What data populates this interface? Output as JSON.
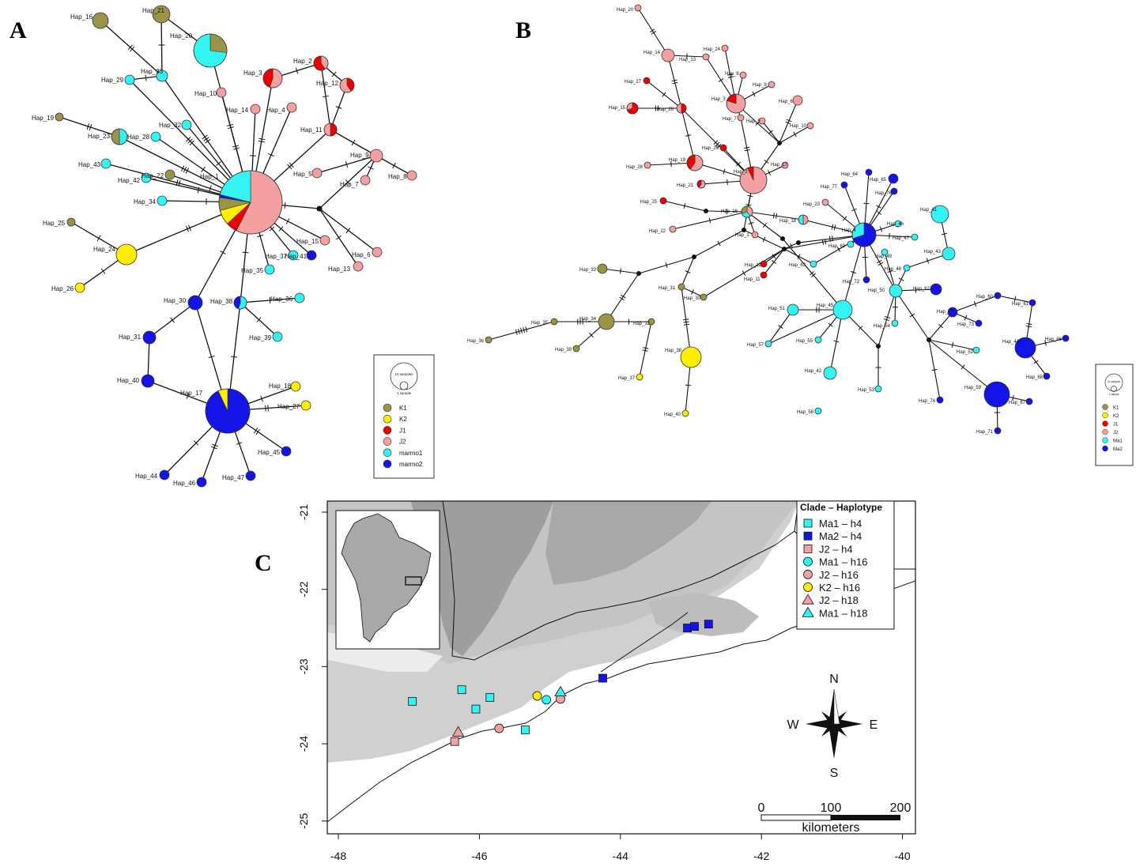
{
  "panels": {
    "a": "A",
    "b": "B",
    "c": "C"
  },
  "colors": {
    "K1": "#9b9447",
    "K2": "#ffee00",
    "J1": "#ee0000",
    "J2": "#f4a0a0",
    "marmo1": "#33f3f3",
    "marmo2": "#1414e6",
    "node": "#111111",
    "edge": "#111111"
  },
  "netA": {
    "nodes": [
      {
        "id": "Hap_1",
        "label": "Hap_1"
      },
      {
        "id": "Hap_2",
        "label": "Hap_2"
      },
      {
        "id": "Hap_3",
        "label": "Hap_3"
      },
      {
        "id": "Hap_4",
        "label": "Hap_4"
      },
      {
        "id": "Hap_5",
        "label": "Hap_5"
      },
      {
        "id": "Hap_6",
        "label": "Hap_6"
      },
      {
        "id": "Hap_7",
        "label": "Hap_7"
      },
      {
        "id": "Hap_8",
        "label": "Hap_8"
      },
      {
        "id": "Hap_9",
        "label": "Hap_9"
      },
      {
        "id": "Hap_10",
        "label": "Hap_10"
      },
      {
        "id": "Hap_11",
        "label": "Hap_11"
      },
      {
        "id": "Hap_12",
        "label": "Hap_12"
      },
      {
        "id": "Hap_13",
        "label": "Hap_13"
      },
      {
        "id": "Hap_14",
        "label": "Hap_14"
      },
      {
        "id": "Hap_15",
        "label": "Hap_15"
      },
      {
        "id": "Hap_16",
        "label": "Hap_16"
      },
      {
        "id": "Hap_17",
        "label": "Hap_17"
      },
      {
        "id": "Hap_18",
        "label": "Hap_18"
      },
      {
        "id": "Hap_19",
        "label": "Hap_19"
      },
      {
        "id": "Hap_20",
        "label": "Hap_20"
      },
      {
        "id": "Hap_21",
        "label": "Hap_21"
      },
      {
        "id": "Hap_22",
        "label": "Hap_22"
      },
      {
        "id": "Hap_23",
        "label": "Hap_23"
      },
      {
        "id": "Hap_24",
        "label": "Hap_24"
      },
      {
        "id": "Hap_25",
        "label": "Hap_25"
      },
      {
        "id": "Hap_26",
        "label": "Hap_26"
      },
      {
        "id": "Hap_27",
        "label": "Hap_27"
      },
      {
        "id": "Hap_28",
        "label": "Hap_28"
      },
      {
        "id": "Hap_29",
        "label": "Hap_29"
      },
      {
        "id": "Hap_30",
        "label": "Hap_30"
      },
      {
        "id": "Hap_31",
        "label": "Hap_31"
      },
      {
        "id": "Hap_32",
        "label": "Hap_32"
      },
      {
        "id": "Hap_33",
        "label": "Hap_33"
      },
      {
        "id": "Hap_34",
        "label": "Hap_34"
      },
      {
        "id": "Hap_35",
        "label": "Hap_35"
      },
      {
        "id": "Hap_36",
        "label": "Hap_36"
      },
      {
        "id": "Hap_37",
        "label": "Hap_37"
      },
      {
        "id": "Hap_38",
        "label": "Hap_38"
      },
      {
        "id": "Hap_39",
        "label": "Hap_39"
      },
      {
        "id": "Hap_40",
        "label": "Hap_40"
      },
      {
        "id": "Hap_41",
        "label": "Hap_41"
      },
      {
        "id": "Hap_42",
        "label": "Hap_42"
      },
      {
        "id": "Hap_43",
        "label": "Hap_43"
      },
      {
        "id": "Hap_44",
        "label": "Hap_44"
      },
      {
        "id": "Hap_45",
        "label": "Hap_45"
      },
      {
        "id": "Hap_46",
        "label": "Hap_46"
      },
      {
        "id": "Hap_47",
        "label": "Hap_47"
      }
    ],
    "legend": {
      "size_big": "10 samples",
      "size_small": "1 sample",
      "items": [
        {
          "name": "K1",
          "color": "#9b9447"
        },
        {
          "name": "K2",
          "color": "#ffee00"
        },
        {
          "name": "J1",
          "color": "#ee0000"
        },
        {
          "name": "J2",
          "color": "#f4a0a0"
        },
        {
          "name": "marmo1",
          "color": "#33f3f3"
        },
        {
          "name": "marmo2",
          "color": "#1414e6"
        }
      ]
    }
  },
  "netB": {
    "labels": [
      "Hap_20",
      "Hap_14",
      "Hap_13",
      "Hap_24",
      "Hap_27",
      "Hap_15",
      "Hap_26",
      "Hap_3",
      "Hap_8",
      "Hap_9",
      "Hap_6",
      "Hap_7",
      "Hap_5",
      "Hap_10",
      "Hap_29",
      "Hap_28",
      "Hap_19",
      "Hap_2",
      "Hap_21",
      "Hap_17",
      "Hap_25",
      "Hap_16",
      "Hap_22",
      "Hap_1",
      "Hap_18",
      "Hap_23",
      "Hap_64",
      "Hap_65",
      "Hap_77",
      "Hap_76",
      "Hap_4",
      "Hap_46",
      "Hap_41",
      "Hap_47",
      "Hap_43",
      "Hap_69",
      "Hap_12",
      "Hap_63",
      "Hap_11",
      "Hap_33",
      "Hap_31",
      "Hap_30",
      "Hap_48",
      "Hap_72",
      "Hap_50",
      "Hap_62",
      "Hap_49",
      "Hap_60",
      "Hap_61",
      "Hap_45",
      "Hap_51",
      "Hap_70",
      "Hap_73",
      "Hap_35",
      "Hap_34",
      "Hap_32",
      "Hap_54",
      "Hap_36",
      "Hap_39",
      "Hap_38",
      "Hap_57",
      "Hap_55",
      "Hap_52",
      "Hap_44",
      "Hap_66",
      "Hap_37",
      "Hap_42",
      "Hap_53",
      "Hap_74",
      "Hap_68",
      "Hap_59",
      "Hap_67",
      "Hap_58",
      "Hap_40",
      "Hap_71"
    ],
    "legend": {
      "size_big": "10 samples",
      "size_small": "1 sample",
      "items": [
        {
          "name": "K1",
          "color": "#9b9447"
        },
        {
          "name": "K2",
          "color": "#ffee00"
        },
        {
          "name": "J1",
          "color": "#ee0000"
        },
        {
          "name": "J2",
          "color": "#f4a0a0"
        },
        {
          "name": "Ma1",
          "color": "#33f3f3"
        },
        {
          "name": "Ma2",
          "color": "#1414e6"
        }
      ]
    }
  },
  "map": {
    "x_ticks": [
      "-48",
      "-46",
      "-44",
      "-42",
      "-40"
    ],
    "y_ticks": [
      "-21",
      "-22",
      "-23",
      "-24",
      "-25"
    ],
    "legend_title": "Clade – Haplotype",
    "legend_items": [
      {
        "label": "Ma1 – h4",
        "shape": "square",
        "color": "#33f3f3"
      },
      {
        "label": "Ma2 – h4",
        "shape": "square",
        "color": "#1414e6"
      },
      {
        "label": "J2 – h4",
        "shape": "square",
        "color": "#f4a0a0"
      },
      {
        "label": "Ma1 – h16",
        "shape": "circle",
        "color": "#33f3f3"
      },
      {
        "label": "J2 – h16",
        "shape": "circle",
        "color": "#f4a0a0"
      },
      {
        "label": "K2 – h16",
        "shape": "circle",
        "color": "#ffee00"
      },
      {
        "label": "J2 – h18",
        "shape": "triangle",
        "color": "#f4a0a0"
      },
      {
        "label": "Ma1 – h18",
        "shape": "triangle",
        "color": "#33f3f3"
      }
    ],
    "compass": {
      "n": "N",
      "s": "S",
      "e": "E",
      "w": "W"
    },
    "scalebar": {
      "t0": "0",
      "t1": "100",
      "t2": "200",
      "unit": "kilometers"
    }
  }
}
